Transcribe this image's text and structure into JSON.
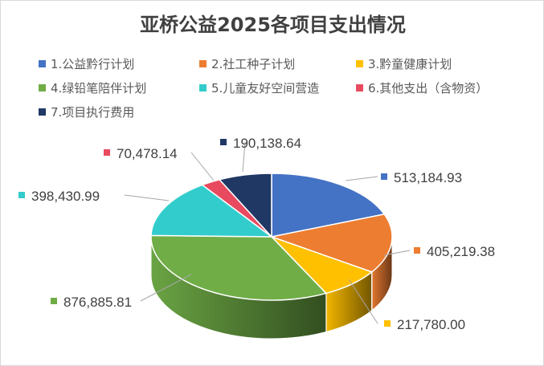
{
  "chart_data": {
    "type": "pie",
    "title": "亚桥公益2025各项目支出情况",
    "legend_position": "top",
    "series": [
      {
        "name": "1.公益黔行计划",
        "value": 513184.93,
        "label": "513,184.93",
        "color": "#4472C4"
      },
      {
        "name": "2.社工种子计划",
        "value": 405219.38,
        "label": "405,219.38",
        "color": "#ED7D31"
      },
      {
        "name": "3.黔童健康计划",
        "value": 217780.0,
        "label": "217,780.00",
        "color": "#FFC000"
      },
      {
        "name": "4.绿铅笔陪伴计划",
        "value": 876885.81,
        "label": "876,885.81",
        "color": "#70AD47"
      },
      {
        "name": "5.儿童友好空间营造",
        "value": 398430.99,
        "label": "398,430.99",
        "color": "#33CCCC"
      },
      {
        "name": "6.其他支出（含物资）",
        "value": 70478.14,
        "label": "70,478.14",
        "color": "#E84A5F"
      },
      {
        "name": "7.项目执行费用",
        "value": 190138.64,
        "label": "190,138.64",
        "color": "#203864"
      }
    ]
  }
}
